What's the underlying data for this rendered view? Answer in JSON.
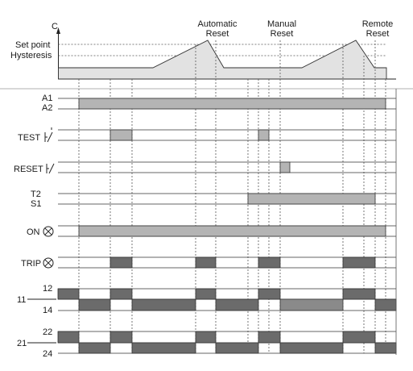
{
  "temperature_axis": {
    "axis_label": "C",
    "setpoint_label": "Set point",
    "hysteresis_label": "Hysteresis"
  },
  "events": {
    "automatic": [
      "Automatic",
      "Reset"
    ],
    "manual": [
      "Manual",
      "Reset"
    ],
    "remote": [
      "Remote",
      "Reset"
    ]
  },
  "rows": {
    "a1a2": [
      "A1",
      "A2"
    ],
    "test": "TEST",
    "reset": "RESET",
    "t2s1": [
      "T2",
      "S1"
    ],
    "on": "ON",
    "trip": "TRIP",
    "contact11": {
      "terminal": "11",
      "nc": "12",
      "no": "14"
    },
    "contact21": {
      "terminal": "21",
      "nc": "22",
      "no": "24"
    }
  },
  "colors": {
    "light_fill": "#b4b4b4",
    "dark_fill": "#6b6b6b",
    "temp_fill": "#e2e2e2"
  }
}
